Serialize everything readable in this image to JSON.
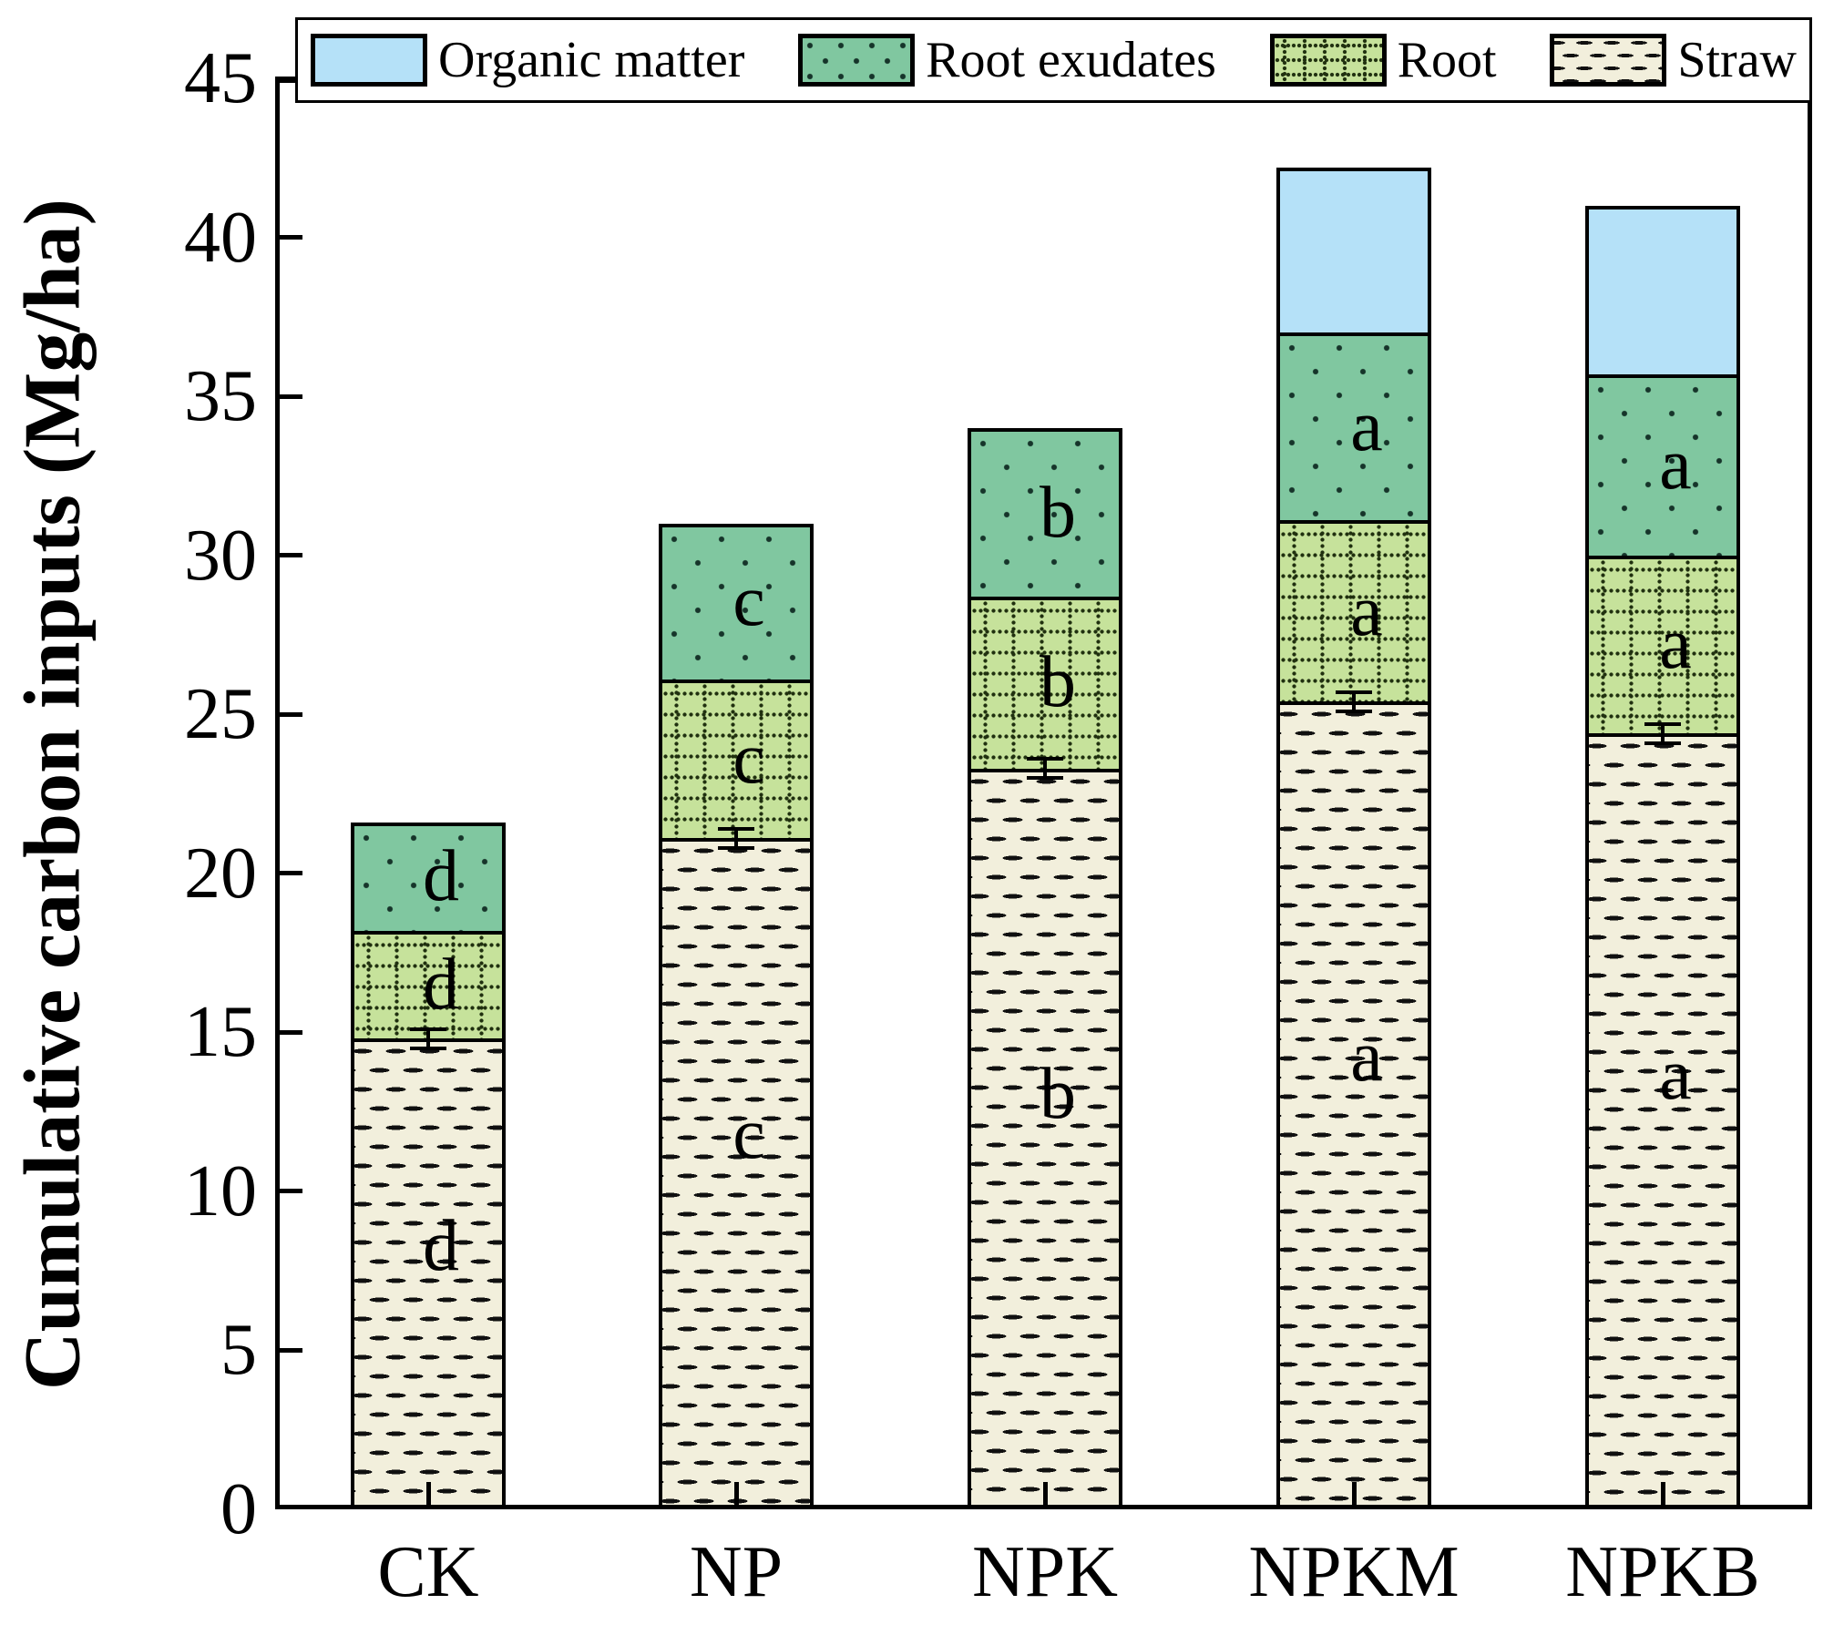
{
  "figure": {
    "background": "#ffffff",
    "frame_color": "#000000"
  },
  "chart_data": {
    "type": "bar",
    "stacked": true,
    "orientation": "vertical",
    "title": "",
    "xlabel": "",
    "ylabel": "Cumulative carbon inputs (Mg/ha)",
    "ylim": [
      0,
      45
    ],
    "yticks": [
      0,
      5,
      10,
      15,
      20,
      25,
      30,
      35,
      40,
      45
    ],
    "grid": false,
    "legend_position": "top",
    "categories": [
      "CK",
      "NP",
      "NPK",
      "NPKM",
      "NPKB"
    ],
    "series": [
      {
        "name": "Straw",
        "color": "#f2efdc",
        "pattern": "horizontal-dashes",
        "values": [
          14.8,
          21.1,
          23.3,
          25.4,
          24.4
        ],
        "sig_letters": [
          "d",
          "c",
          "b",
          "a",
          "a"
        ]
      },
      {
        "name": "Root",
        "color": "#c6e29b",
        "pattern": "dotted-grid",
        "values": [
          3.4,
          5.0,
          5.4,
          5.7,
          5.6
        ],
        "sig_letters": [
          "d",
          "c",
          "b",
          "a",
          "a"
        ]
      },
      {
        "name": "Root exudates",
        "color": "#80c7a0",
        "pattern": "dots",
        "values": [
          3.4,
          4.9,
          5.3,
          5.9,
          5.7
        ],
        "sig_letters": [
          "d",
          "c",
          "b",
          "a",
          "a"
        ]
      },
      {
        "name": "Organic matter",
        "color": "#b5e1f8",
        "pattern": "solid",
        "values": [
          0,
          0,
          0,
          5.2,
          5.3
        ],
        "sig_letters": [
          "",
          "",
          "",
          "",
          ""
        ]
      }
    ],
    "stack_totals": [
      21.6,
      31.0,
      34.0,
      42.2,
      41.0
    ],
    "error_bar_on_series": "Straw",
    "error_bar_half_value": 0.3,
    "legend_items": [
      "Organic matter",
      "Root exudates",
      "Root",
      "Straw"
    ]
  }
}
